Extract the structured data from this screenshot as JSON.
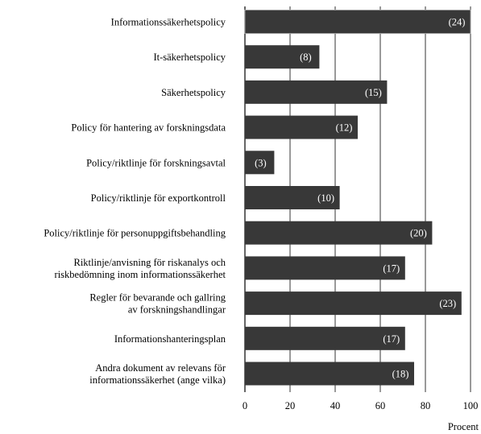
{
  "chart_data": {
    "type": "bar",
    "orientation": "horizontal",
    "categories": [
      [
        "Informationssäkerhetspolicy"
      ],
      [
        "It-säkerhetspolicy"
      ],
      [
        "Säkerhetspolicy"
      ],
      [
        "Policy för hantering av forskningsdata"
      ],
      [
        "Policy/riktlinje för forskningsavtal"
      ],
      [
        "Policy/riktlinje för exportkontroll"
      ],
      [
        "Policy/riktlinje för personuppgiftsbehandling"
      ],
      [
        "Riktlinje/anvisning för riskanalys och",
        "riskbedömning inom informationssäkerhet"
      ],
      [
        "Regler för bevarande och gallring",
        "av forskningshandlingar"
      ],
      [
        "Informationshanteringsplan"
      ],
      [
        "Andra dokument av relevans för",
        "informationssäkerhet (ange vilka)"
      ]
    ],
    "values": [
      100,
      33,
      63,
      50,
      13,
      42,
      83,
      71,
      96,
      71,
      75
    ],
    "counts": [
      "(24)",
      "(8)",
      "(15)",
      "(12)",
      "(3)",
      "(10)",
      "(20)",
      "(17)",
      "(23)",
      "(17)",
      "(18)"
    ],
    "xlim": [
      0,
      100
    ],
    "xticks": [
      "0",
      "20",
      "40",
      "60",
      "80",
      "100"
    ],
    "xlabel": "Procent",
    "grid": true,
    "bar_color": "#383838",
    "grid_color": "#000000"
  }
}
